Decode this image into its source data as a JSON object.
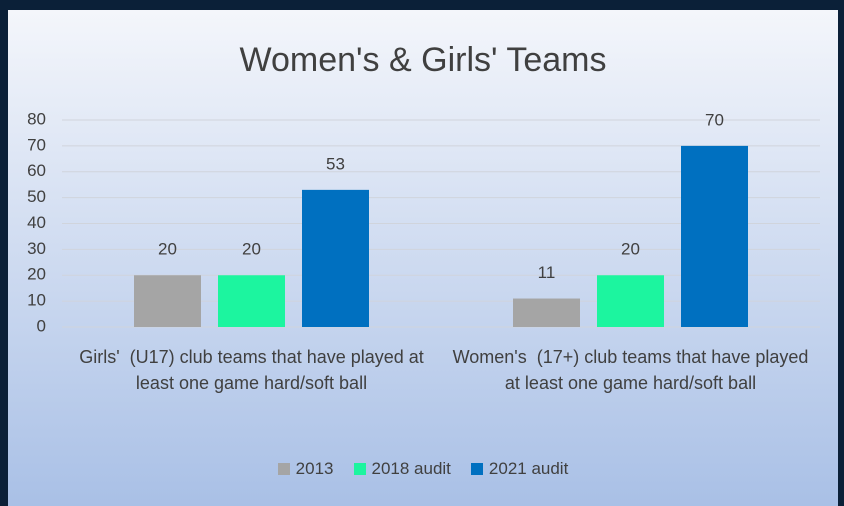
{
  "chart_data": {
    "type": "bar",
    "title": "Women's & Girls' Teams",
    "categories": [
      "Girls'  (U17) club teams that have played at least one game hard/soft ball",
      "Women's  (17+) club teams that have played at least one game hard/soft ball"
    ],
    "series": [
      {
        "name": "2013",
        "color": "#a5a5a5",
        "values": [
          20,
          11
        ]
      },
      {
        "name": "2018 audit",
        "color": "#1cf59f",
        "values": [
          20,
          20
        ]
      },
      {
        "name": "2021 audit",
        "color": "#0070c0",
        "values": [
          53,
          70
        ]
      }
    ],
    "ylim": [
      0,
      80
    ],
    "yticks": [
      0,
      10,
      20,
      30,
      40,
      50,
      60,
      70,
      80
    ],
    "grid": true,
    "legend": "bottom"
  }
}
